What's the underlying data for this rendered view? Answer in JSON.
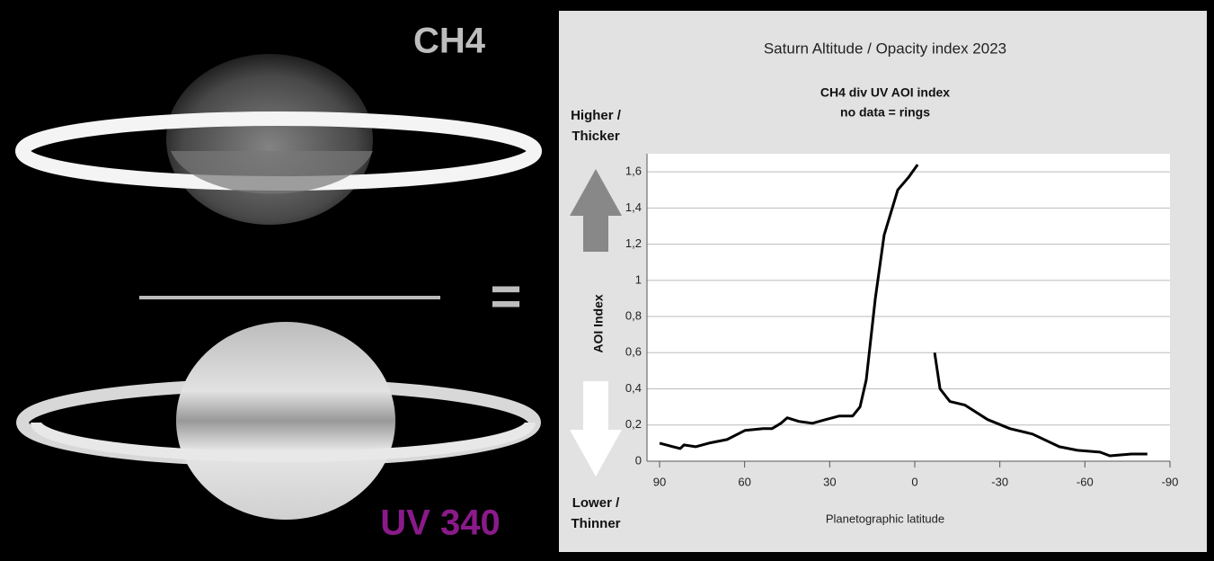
{
  "images": {
    "top_filter": "CH4",
    "operator": "=",
    "bottom_filter": "UV 340"
  },
  "chart_data": {
    "type": "line",
    "title": "Saturn Altitude / Opacity index 2023",
    "subtitle": "CH4 div UV AOI index",
    "note": "no data = rings",
    "y_label": "AOI Index",
    "x_label": "Planetographic latitude",
    "arrow_labels": {
      "up": [
        "Higher /",
        "Thicker"
      ],
      "down": [
        "Lower /",
        "Thinner"
      ]
    },
    "grid": true,
    "xlim": [
      90,
      -90
    ],
    "xticks": [
      90,
      60,
      30,
      0,
      -30,
      -60,
      -90
    ],
    "ylim": [
      0,
      1.7
    ],
    "yticks": [
      0,
      {
        "value": 0.2,
        "label": "0,2"
      },
      {
        "value": 0.4,
        "label": "0,4"
      },
      {
        "value": 0.6,
        "label": "0,6"
      },
      {
        "value": 0.8,
        "label": "0,8"
      },
      1,
      {
        "value": 1.2,
        "label": "1,2"
      },
      {
        "value": 1.4,
        "label": "1,4"
      },
      {
        "value": 1.6,
        "label": "1,6"
      }
    ],
    "x": [
      90,
      85.2,
      82.7,
      81.4,
      77.3,
      72.6,
      66.2,
      59.9,
      53.5,
      50.4,
      47.2,
      45,
      40.9,
      36.1,
      31.4,
      26.6,
      21.9,
      19.3,
      17.1,
      13.9,
      10.8,
      6,
      2.2,
      -1,
      -4,
      -7,
      -8.9,
      -12.4,
      -17.7,
      -25.7,
      -33.6,
      -41.5,
      -51,
      -57.4,
      -65.3,
      -68.8,
      -76.4,
      -82
    ],
    "series": [
      {
        "color": "#000000",
        "values": [
          0.1,
          0.08,
          0.07,
          0.09,
          0.08,
          0.1,
          0.12,
          0.17,
          0.18,
          0.18,
          0.21,
          0.24,
          0.22,
          0.21,
          0.23,
          0.25,
          0.25,
          0.3,
          0.45,
          0.9,
          1.25,
          1.5,
          1.57,
          1.64,
          null,
          0.6,
          0.4,
          0.33,
          0.31,
          0.23,
          0.18,
          0.15,
          0.08,
          0.06,
          0.05,
          0.03,
          0.04,
          0.04
        ]
      }
    ]
  }
}
